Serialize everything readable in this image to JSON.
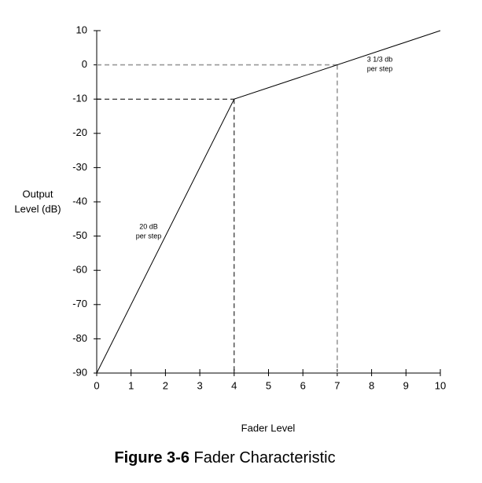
{
  "chart_data": {
    "type": "line",
    "figure_label": "Figure 3-6",
    "title": "Fader Characteristic",
    "x_label": "Fader Level",
    "y_label": [
      "Output",
      "Level (dB)"
    ],
    "x": [
      0,
      4,
      10
    ],
    "series": [
      {
        "color": "#000000",
        "values": [
          -90,
          -10,
          10
        ]
      }
    ],
    "xlim": [
      0,
      10
    ],
    "xticks": [
      0,
      1,
      2,
      3,
      4,
      5,
      6,
      7,
      8,
      9,
      10
    ],
    "ylim": [
      -90,
      10
    ],
    "yticks": [
      -90,
      -80,
      -70,
      -60,
      -50,
      -40,
      -30,
      -20,
      -10,
      0,
      10
    ],
    "reference_lines": [
      {
        "x": 4,
        "y": -10,
        "color": "#000000"
      },
      {
        "x": 7,
        "y": 0,
        "color": "#999999"
      }
    ],
    "annotations": [
      [
        "20 dB",
        "per step"
      ],
      [
        "3 1/3 db",
        "per step"
      ]
    ]
  }
}
